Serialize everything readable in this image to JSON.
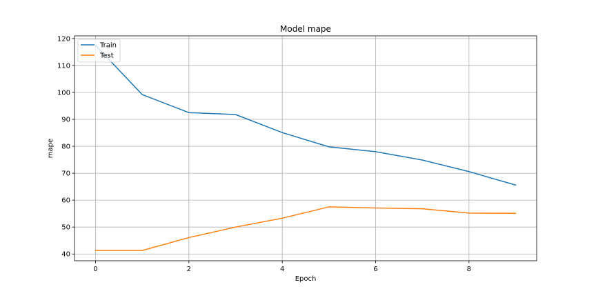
{
  "chart_data": {
    "type": "line",
    "title": "Model mape",
    "xlabel": "Epoch",
    "ylabel": "mape",
    "x": [
      0,
      1,
      2,
      3,
      4,
      5,
      6,
      7,
      8,
      9
    ],
    "series": [
      {
        "name": "Train",
        "color": "#1f77b4",
        "values": [
          117.5,
          99.2,
          92.5,
          91.8,
          85.1,
          79.8,
          78.0,
          74.9,
          70.6,
          65.6
        ]
      },
      {
        "name": "Test",
        "color": "#ff7f0e",
        "values": [
          41.3,
          41.3,
          46.1,
          50.0,
          53.3,
          57.5,
          57.1,
          56.8,
          55.2,
          55.1
        ]
      }
    ],
    "xlim": [
      -0.45,
      9.45
    ],
    "ylim": [
      37.5,
      121
    ],
    "xticks": [
      0,
      2,
      4,
      6,
      8
    ],
    "yticks": [
      40,
      50,
      60,
      70,
      80,
      90,
      100,
      110,
      120
    ],
    "grid": true,
    "legend_position": "top-left"
  }
}
